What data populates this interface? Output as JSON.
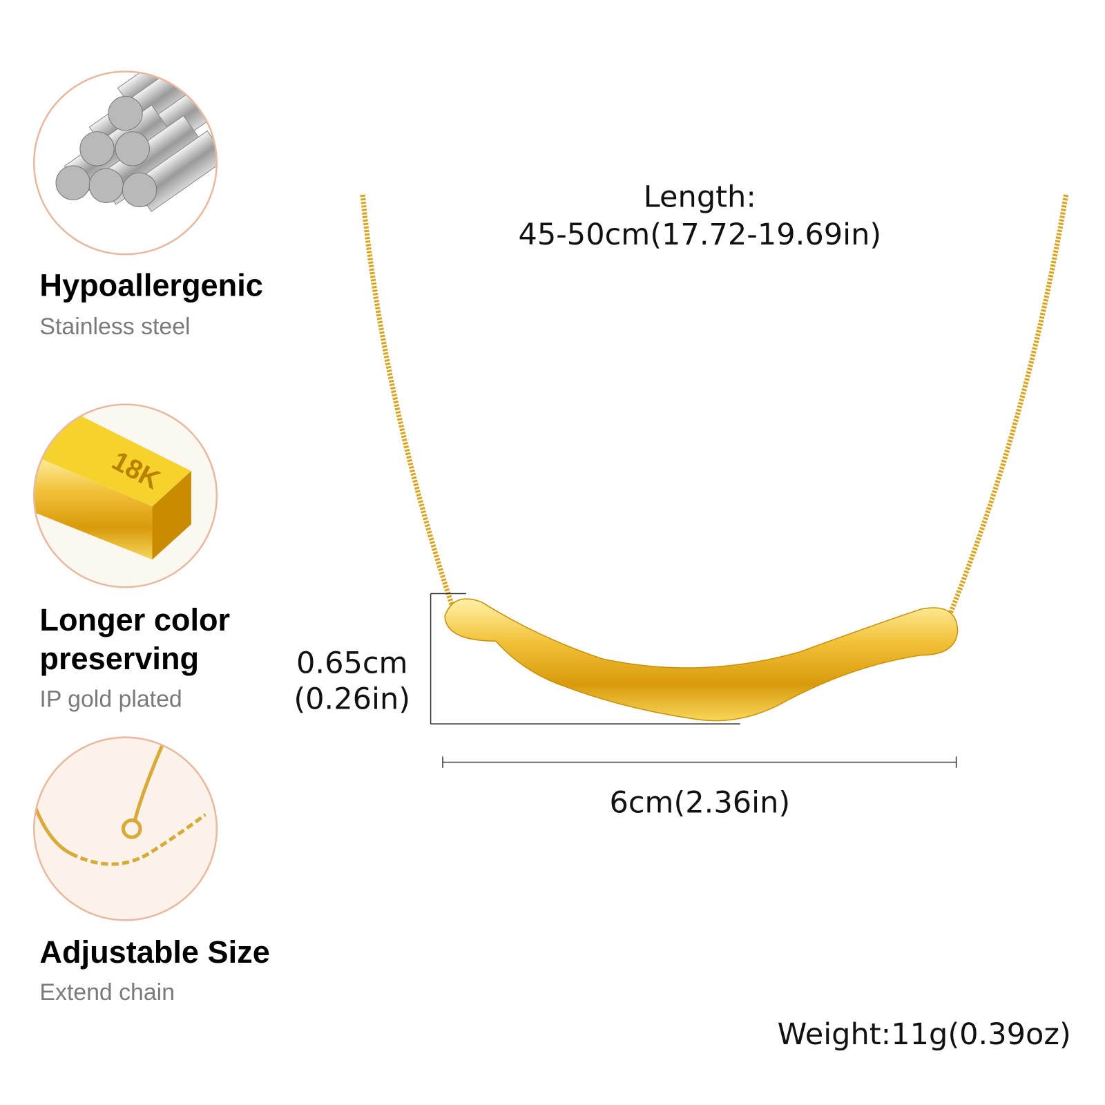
{
  "features": [
    {
      "title_lines": [
        "Hypoallergenic"
      ],
      "subtitle": "Stainless steel",
      "icon": "steel-rods-icon"
    },
    {
      "title_lines": [
        "Longer color",
        "preserving"
      ],
      "subtitle": "IP gold plated",
      "icon": "gold-bar-icon",
      "icon_text": "18K"
    },
    {
      "title_lines": [
        "Adjustable Size"
      ],
      "subtitle": "Extend chain",
      "icon": "extension-chain-icon"
    }
  ],
  "dimensions": {
    "length_label": "Length:",
    "length_value": "45-50cm(17.72-19.69in)",
    "height_cm": "0.65cm",
    "height_in": "(0.26in)",
    "width": "6cm(2.36in)",
    "weight": "Weight:11g(0.39oz)"
  },
  "colors": {
    "circle_border": "#e8b9a0",
    "gold": "#e6b422",
    "subtitle": "#7a7a7a"
  }
}
